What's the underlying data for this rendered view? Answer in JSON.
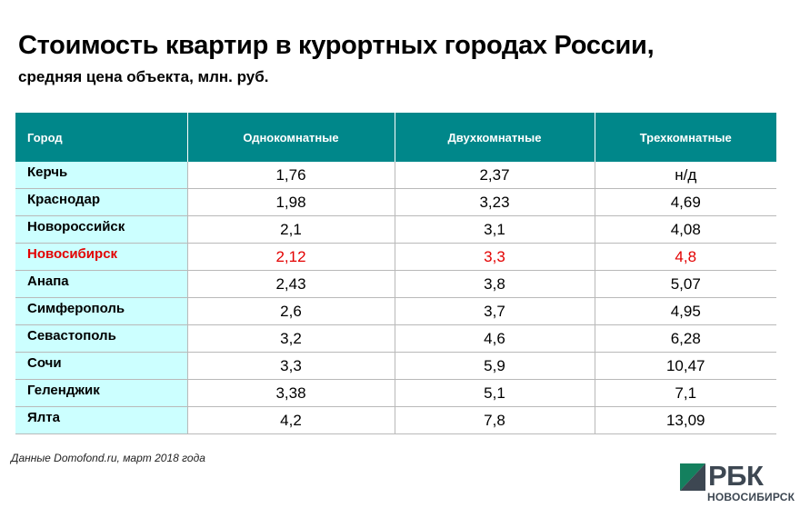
{
  "title": "Стоимость квартир в курортных городах России,",
  "subtitle": "средняя цена объекта, млн. руб.",
  "source": "Данные Domofond.ru, март 2018 года",
  "logo": {
    "name": "РБК",
    "city": "НОВОСИБИРСК"
  },
  "colors": {
    "header_bg": "#00878a",
    "city_cell_bg": "#ccffff",
    "highlight": "#e30000"
  },
  "chart_data": {
    "type": "table",
    "title": "Стоимость квартир в курортных городах России,",
    "subtitle": "средняя цена объекта, млн. руб.",
    "columns": [
      "Город",
      "Однокомнатные",
      "Двухкомнатные",
      "Трехкомнатные"
    ],
    "rows": [
      {
        "city": "Керчь",
        "values": [
          "1,76",
          "2,37",
          "н/д"
        ],
        "highlight": false
      },
      {
        "city": "Краснодар",
        "values": [
          "1,98",
          "3,23",
          "4,69"
        ],
        "highlight": false
      },
      {
        "city": "Новороссийск",
        "values": [
          "2,1",
          "3,1",
          "4,08"
        ],
        "highlight": false
      },
      {
        "city": "Новосибирск",
        "values": [
          "2,12",
          "3,3",
          "4,8"
        ],
        "highlight": true
      },
      {
        "city": "Анапа",
        "values": [
          "2,43",
          "3,8",
          "5,07"
        ],
        "highlight": false
      },
      {
        "city": "Симферополь",
        "values": [
          "2,6",
          "3,7",
          "4,95"
        ],
        "highlight": false
      },
      {
        "city": "Севастополь",
        "values": [
          "3,2",
          "4,6",
          "6,28"
        ],
        "highlight": false
      },
      {
        "city": "Сочи",
        "values": [
          "3,3",
          "5,9",
          "10,47"
        ],
        "highlight": false
      },
      {
        "city": "Геленджик",
        "values": [
          "3,38",
          "5,1",
          "7,1"
        ],
        "highlight": false
      },
      {
        "city": "Ялта",
        "values": [
          "4,2",
          "7,8",
          "13,09"
        ],
        "highlight": false
      }
    ]
  }
}
